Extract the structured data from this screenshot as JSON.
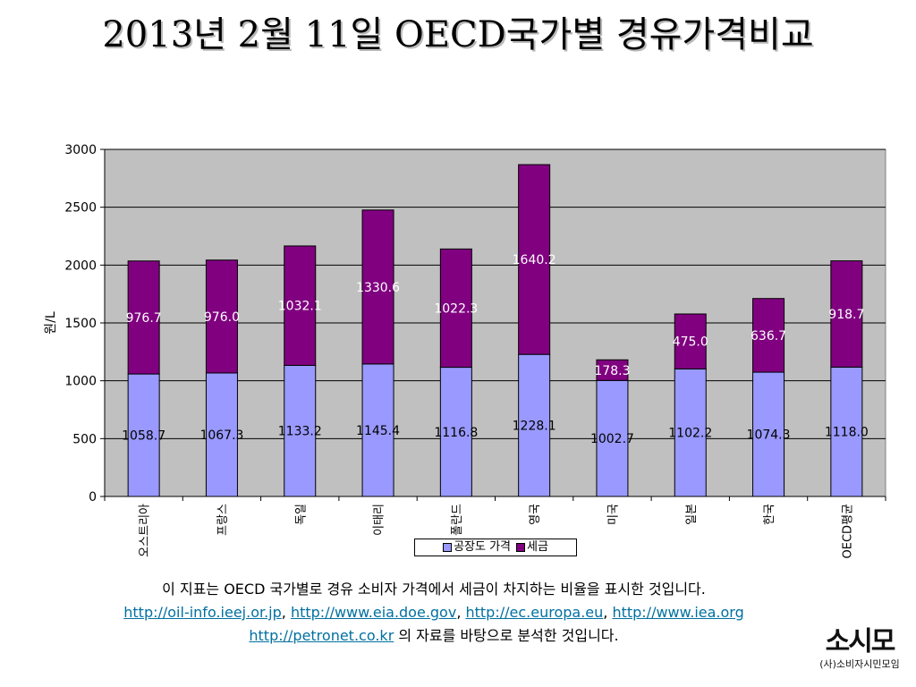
{
  "title": "2013년 2월 11일 OECD국가별 경유가격비교",
  "chart_data": {
    "type": "bar",
    "stacked": true,
    "categories": [
      "오스트리아",
      "프랑스",
      "독일",
      "이태리",
      "폴란드",
      "영국",
      "미국",
      "일본",
      "한국",
      "OECD평균"
    ],
    "series": [
      {
        "name": "공장도 가격",
        "color": "#9999ff",
        "values": [
          1058.7,
          1067.3,
          1133.2,
          1145.4,
          1116.8,
          1228.1,
          1002.7,
          1102.2,
          1074.3,
          1118.0
        ]
      },
      {
        "name": "세금",
        "color": "#800080",
        "values": [
          976.7,
          976.0,
          1032.1,
          1330.6,
          1022.3,
          1640.2,
          178.3,
          475.0,
          636.7,
          918.7
        ]
      }
    ],
    "value_labels": [
      [
        "1058.7",
        "1067.3",
        "1133.2",
        "1145.4",
        "1116.8",
        "1228.1",
        "1002.7",
        "1102.2",
        "1074.3",
        "1118.0"
      ],
      [
        "976.7",
        "976.0",
        "1032.1",
        "1330.6",
        "1022.3",
        "1640.2",
        "178.3",
        "475.0",
        "636.7",
        "918.7"
      ]
    ],
    "ylabel": "원/L",
    "ylim": [
      0,
      3000
    ],
    "yticks": [
      0,
      500,
      1000,
      1500,
      2000,
      2500,
      3000
    ],
    "grid": true,
    "legend_position": "bottom"
  },
  "footer": {
    "line1": "이 지표는 OECD 국가별로 경유 소비자 가격에서 세금이 차지하는 비율을 표시한 것입니다.",
    "links": [
      "http://oil-info.ieej.or.jp",
      "http://www.eia.doe.gov",
      "http://ec.europa.eu",
      "http://www.iea.org",
      "http://petronet.co.kr"
    ],
    "sep": ", ",
    "line3_suffix": " 의 자료를 바탕으로 분석한 것입니다."
  },
  "logo": {
    "main": "소시모",
    "sub": "(사)소비자시민모임"
  }
}
